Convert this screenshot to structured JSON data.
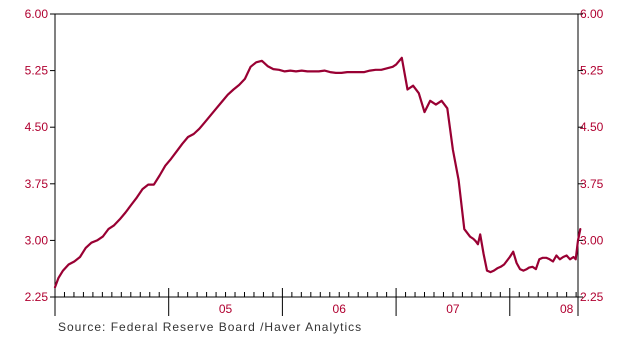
{
  "chart_data": {
    "type": "line",
    "title": "",
    "xlabel": "",
    "ylabel": "",
    "ylim": [
      2.25,
      6.0
    ],
    "xlim": [
      2004.0,
      2008.6
    ],
    "grid": false,
    "legend": "none",
    "y_ticks": [
      {
        "value": 6.0,
        "label": "6.00"
      },
      {
        "value": 5.25,
        "label": "5.25"
      },
      {
        "value": 4.5,
        "label": "4.50"
      },
      {
        "value": 3.75,
        "label": "3.75"
      },
      {
        "value": 3.0,
        "label": "3.00"
      },
      {
        "value": 2.25,
        "label": "2.25"
      }
    ],
    "x_labels": [
      {
        "value": 2005.5,
        "label": "05"
      },
      {
        "value": 2006.5,
        "label": "06"
      },
      {
        "value": 2007.5,
        "label": "07"
      },
      {
        "value": 2008.5,
        "label": "08"
      }
    ],
    "x_major_ticks": [
      2004.0,
      2005.0,
      2006.0,
      2007.0,
      2008.0
    ],
    "series": [
      {
        "color": "#990033",
        "x": [
          2004.0,
          2004.03,
          2004.07,
          2004.12,
          2004.17,
          2004.22,
          2004.27,
          2004.32,
          2004.37,
          2004.42,
          2004.47,
          2004.52,
          2004.57,
          2004.62,
          2004.67,
          2004.72,
          2004.77,
          2004.82,
          2004.87,
          2004.92,
          2004.97,
          2005.02,
          2005.07,
          2005.12,
          2005.17,
          2005.22,
          2005.27,
          2005.32,
          2005.37,
          2005.42,
          2005.47,
          2005.52,
          2005.57,
          2005.62,
          2005.67,
          2005.72,
          2005.77,
          2005.82,
          2005.87,
          2005.92,
          2005.97,
          2006.02,
          2006.07,
          2006.12,
          2006.17,
          2006.22,
          2006.27,
          2006.32,
          2006.37,
          2006.42,
          2006.47,
          2006.52,
          2006.57,
          2006.62,
          2006.67,
          2006.72,
          2006.77,
          2006.82,
          2006.87,
          2006.92,
          2006.97,
          2007.0,
          2007.05,
          2007.1,
          2007.15,
          2007.2,
          2007.25,
          2007.3,
          2007.35,
          2007.4,
          2007.45,
          2007.5,
          2007.55,
          2007.6,
          2007.65,
          2007.68,
          2007.7,
          2007.72,
          2007.74,
          2007.77,
          2007.8,
          2007.83,
          2007.86,
          2007.89,
          2007.92,
          2007.95,
          2008.0,
          2008.03,
          2008.06,
          2008.09,
          2008.12,
          2008.15,
          2008.17,
          2008.2,
          2008.23,
          2008.26,
          2008.29,
          2008.32,
          2008.35,
          2008.38,
          2008.41,
          2008.44,
          2008.47,
          2008.5,
          2008.53,
          2008.56,
          2008.58,
          2008.6,
          2008.62
        ],
        "values": [
          2.38,
          2.5,
          2.6,
          2.68,
          2.72,
          2.78,
          2.9,
          2.97,
          3.0,
          3.05,
          3.15,
          3.2,
          3.28,
          3.37,
          3.47,
          3.57,
          3.68,
          3.74,
          3.74,
          3.86,
          3.99,
          4.08,
          4.18,
          4.28,
          4.37,
          4.41,
          4.48,
          4.57,
          4.66,
          4.75,
          4.84,
          4.93,
          5.0,
          5.06,
          5.14,
          5.3,
          5.36,
          5.38,
          5.31,
          5.27,
          5.26,
          5.24,
          5.25,
          5.24,
          5.25,
          5.24,
          5.24,
          5.24,
          5.25,
          5.23,
          5.22,
          5.22,
          5.23,
          5.23,
          5.23,
          5.23,
          5.25,
          5.26,
          5.26,
          5.28,
          5.3,
          5.33,
          5.42,
          5.0,
          5.05,
          4.95,
          4.7,
          4.85,
          4.8,
          4.85,
          4.75,
          4.2,
          3.8,
          3.15,
          3.05,
          3.02,
          2.99,
          2.95,
          3.08,
          2.82,
          2.6,
          2.58,
          2.6,
          2.63,
          2.65,
          2.68,
          2.78,
          2.85,
          2.7,
          2.62,
          2.6,
          2.62,
          2.64,
          2.65,
          2.62,
          2.75,
          2.77,
          2.77,
          2.75,
          2.72,
          2.8,
          2.75,
          2.78,
          2.8,
          2.75,
          2.78,
          2.75,
          3.0,
          3.15
        ]
      }
    ],
    "source": "Source:  Federal Reserve Board /Haver Analytics"
  },
  "colors": {
    "line": "#990033",
    "axis": "#000000",
    "tick_label": "#b00030",
    "source_text": "#333333"
  }
}
